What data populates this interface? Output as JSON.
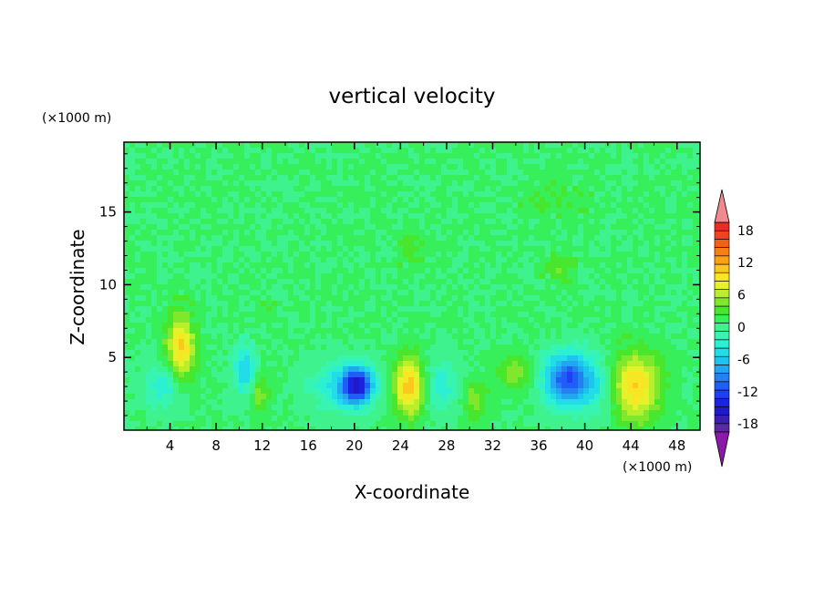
{
  "chart_data": {
    "type": "heatmap",
    "title": "vertical velocity",
    "xlabel": "X-coordinate",
    "ylabel": "Z-coordinate",
    "x_unit": "(×1000 m)",
    "y_unit": "(×1000 m)",
    "xlim": [
      0,
      50
    ],
    "ylim": [
      0,
      19.8
    ],
    "x_ticks": [
      4,
      8,
      12,
      16,
      20,
      24,
      28,
      32,
      36,
      40,
      44,
      48
    ],
    "y_ticks": [
      5,
      10,
      15
    ],
    "grid": false,
    "colorbar": {
      "levels": [
        -21,
        -19.5,
        -18,
        -16.5,
        -15,
        -13.5,
        -12,
        -10.5,
        -9,
        -7.5,
        -6,
        -4.5,
        -3,
        -1.5,
        0,
        1.5,
        3,
        4.5,
        6,
        7.5,
        9,
        10.5,
        12,
        13.5,
        15,
        16.5,
        18,
        19.5,
        21
      ],
      "colors": [
        "#8b1aa8",
        "#5a2aa0",
        "#3b1fb0",
        "#1f19c9",
        "#1a24e0",
        "#1e40f2",
        "#1f5ef7",
        "#2381f2",
        "#21a6ef",
        "#1ec4ee",
        "#22dde8",
        "#2cf0d3",
        "#37f5b0",
        "#3ef38e",
        "#37ef5a",
        "#48e62d",
        "#7fe82d",
        "#b8ef2a",
        "#e5f22a",
        "#f7e623",
        "#fbc81c",
        "#fba118",
        "#f87d14",
        "#f55f12",
        "#f0441c",
        "#e62e24",
        "#f08a8e"
      ],
      "tick_values": [
        18,
        12,
        6,
        0,
        -6,
        -12,
        -18
      ],
      "tick_labels": [
        "18",
        "12",
        "6",
        "0",
        "-6",
        "-12",
        "-18"
      ]
    },
    "background_value": 0,
    "features": [
      {
        "x": 5,
        "z": 5.6,
        "w": 4.5,
        "peak": 9,
        "sx": 1.2,
        "sz": 2.3
      },
      {
        "x": 11.8,
        "z": 2.5,
        "w": 3,
        "peak": 4,
        "sx": 0.8,
        "sz": 1.4
      },
      {
        "x": 12.3,
        "z": 8.2,
        "w": 1.5,
        "peak": 1.5,
        "sx": 0.8,
        "sz": 0.8
      },
      {
        "x": 10.5,
        "z": 4.2,
        "w": -3,
        "peak": -6,
        "sx": 1,
        "sz": 1.8
      },
      {
        "x": 3.5,
        "z": 3,
        "w": -2.5,
        "peak": -4,
        "sx": 1.8,
        "sz": 1.6
      },
      {
        "x": 20.3,
        "z": 3.1,
        "w": -8,
        "peak": -14,
        "sx": 1.4,
        "sz": 1.3
      },
      {
        "x": 18.5,
        "z": 3,
        "w": -3,
        "peak": -4,
        "sx": 2.5,
        "sz": 1.8
      },
      {
        "x": 24.8,
        "z": 3,
        "w": 6,
        "peak": 10,
        "sx": 1.3,
        "sz": 2
      },
      {
        "x": 27.5,
        "z": 3,
        "w": -3,
        "peak": -4,
        "sx": 1.5,
        "sz": 1.8
      },
      {
        "x": 30.5,
        "z": 2,
        "w": 3,
        "peak": 4,
        "sx": 1,
        "sz": 1.3
      },
      {
        "x": 34,
        "z": 4,
        "w": 3,
        "peak": 4,
        "sx": 1.5,
        "sz": 1.2
      },
      {
        "x": 38.5,
        "z": 3.5,
        "w": -7,
        "peak": -12,
        "sx": 2,
        "sz": 1.8
      },
      {
        "x": 44.5,
        "z": 3,
        "w": 6,
        "peak": 9,
        "sx": 2,
        "sz": 2.3
      },
      {
        "x": 41,
        "z": 3,
        "w": -2.5,
        "peak": -3,
        "sx": 1.5,
        "sz": 2
      },
      {
        "x": 25,
        "z": 12.5,
        "w": 1.5,
        "peak": 2,
        "sx": 1.2,
        "sz": 1.2
      },
      {
        "x": 38,
        "z": 11,
        "w": 1.5,
        "peak": 2,
        "sx": 1.5,
        "sz": 1.2
      },
      {
        "x": 37,
        "z": 16,
        "w": 1.2,
        "peak": 1.5,
        "sx": 3,
        "sz": 1.5
      }
    ]
  }
}
